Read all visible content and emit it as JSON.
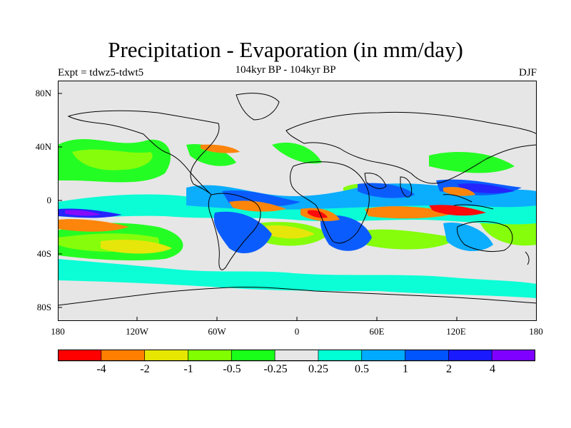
{
  "title": "Precipitation - Evaporation (in mm/day)",
  "subtitle": "104kyr BP - 104kyr BP",
  "experiment": "Expt = tdwz5-tdwt5",
  "season": "DJF",
  "axes": {
    "y_ticks": [
      "80N",
      "40N",
      "0",
      "40S",
      "80S"
    ],
    "x_ticks": [
      "180",
      "120W",
      "60W",
      "0",
      "60E",
      "120E",
      "180"
    ]
  },
  "colorbar": {
    "colors": [
      "#ff0000",
      "#ff8000",
      "#e6e600",
      "#80ff00",
      "#1aff1a",
      "#e6e6e6",
      "#00ffd5",
      "#00aaff",
      "#0055ff",
      "#1a1aff",
      "#8000ff"
    ],
    "labels": [
      "-4",
      "-2",
      "-1",
      "-0.5",
      "-0.25",
      "0.25",
      "0.5",
      "1",
      "2",
      "4"
    ]
  }
}
